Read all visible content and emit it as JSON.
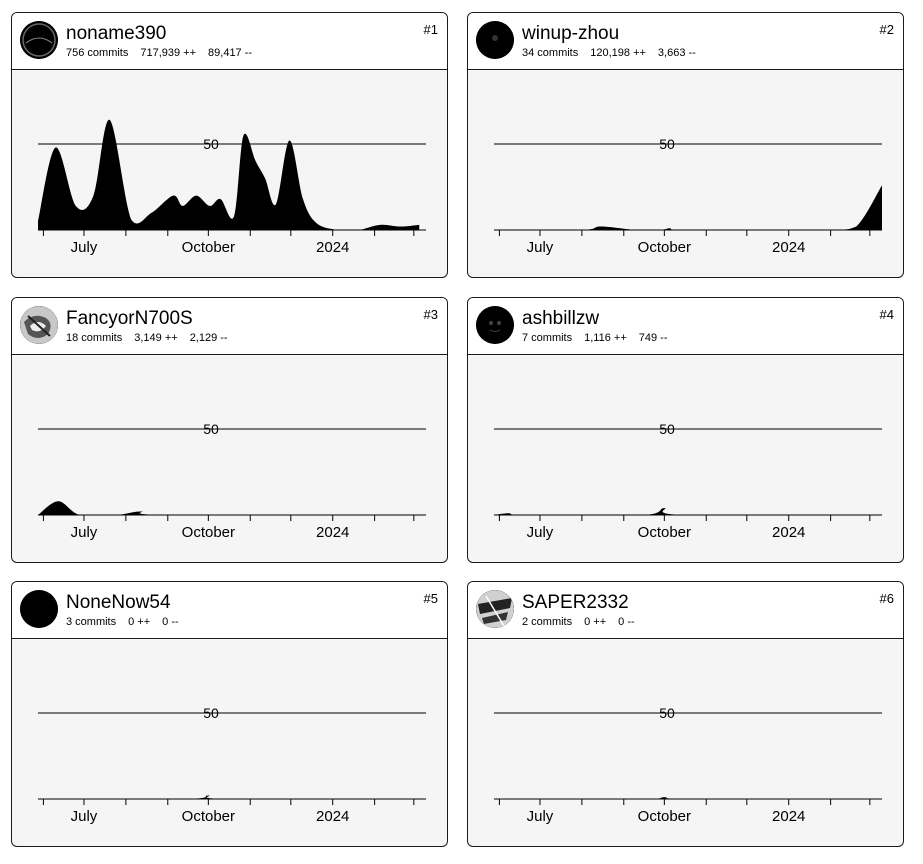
{
  "colors": {
    "card_bg": "#f5f5f5",
    "header_bg": "#ffffff",
    "fill": "#000000"
  },
  "cards": [
    {
      "rank": "#1",
      "username": "noname390",
      "commits": "756 commits",
      "additions": "717,939 ++",
      "deletions": "89,417 --",
      "avatar_icon": "avatar-icon"
    },
    {
      "rank": "#2",
      "username": "winup-zhou",
      "commits": "34 commits",
      "additions": "120,198 ++",
      "deletions": "3,663 --",
      "avatar_icon": "avatar-icon"
    },
    {
      "rank": "#3",
      "username": "FancyorN700S",
      "commits": "18 commits",
      "additions": "3,149 ++",
      "deletions": "2,129 --",
      "avatar_icon": "avatar-icon"
    },
    {
      "rank": "#4",
      "username": "ashbillzw",
      "commits": "7 commits",
      "additions": "1,116 ++",
      "deletions": "749 --",
      "avatar_icon": "avatar-icon"
    },
    {
      "rank": "#5",
      "username": "NoneNow54",
      "commits": "3 commits",
      "additions": "0 ++",
      "deletions": "0 --",
      "avatar_icon": "avatar-icon"
    },
    {
      "rank": "#6",
      "username": "SAPER2332",
      "commits": "2 commits",
      "additions": "0 ++",
      "deletions": "0 --",
      "avatar_icon": "avatar-icon"
    }
  ],
  "chart_data": [
    {
      "type": "area",
      "title": "",
      "x_labels": [
        "July",
        "October",
        "2024"
      ],
      "y_labels": [
        "50"
      ],
      "ylim": [
        0,
        50
      ],
      "grid": false,
      "series": [
        {
          "x": [
            "2023-05-28",
            "2023-06-10",
            "2023-06-25",
            "2023-07-08",
            "2023-07-20",
            "2023-08-05",
            "2023-08-20",
            "2023-09-05",
            "2023-09-12",
            "2023-09-22",
            "2023-10-02",
            "2023-10-10",
            "2023-10-20",
            "2023-10-27",
            "2023-11-05",
            "2023-11-12",
            "2023-11-20",
            "2023-11-30",
            "2023-12-10",
            "2023-12-20",
            "2024-01-05",
            "2024-01-20",
            "2024-02-05",
            "2024-02-20",
            "2024-03-05"
          ],
          "y": [
            5,
            48,
            14,
            20,
            64,
            6,
            10,
            20,
            14,
            20,
            14,
            18,
            8,
            55,
            40,
            30,
            15,
            52,
            18,
            4,
            0,
            0,
            3,
            2,
            3
          ]
        }
      ]
    },
    {
      "type": "area",
      "title": "",
      "x_labels": [
        "July",
        "October",
        "2024"
      ],
      "y_labels": [
        "50"
      ],
      "ylim": [
        0,
        50
      ],
      "grid": false,
      "series": [
        {
          "x": [
            "2023-05-28",
            "2023-08-01",
            "2023-08-15",
            "2023-09-10",
            "2023-09-28",
            "2023-10-05",
            "2023-10-12",
            "2023-12-01",
            "2024-02-01",
            "2024-02-20",
            "2024-03-10"
          ],
          "y": [
            0,
            0,
            2,
            0,
            0,
            1,
            0,
            0,
            0,
            2,
            26
          ]
        }
      ]
    },
    {
      "type": "area",
      "title": "",
      "x_labels": [
        "July",
        "October",
        "2024"
      ],
      "y_labels": [
        "50"
      ],
      "ylim": [
        0,
        50
      ],
      "grid": false,
      "series": [
        {
          "x": [
            "2023-05-28",
            "2023-06-12",
            "2023-06-28",
            "2023-07-25",
            "2023-08-12",
            "2023-09-01",
            "2024-03-10"
          ],
          "y": [
            0,
            8,
            0,
            0,
            2,
            0,
            0
          ]
        }
      ]
    },
    {
      "type": "area",
      "title": "",
      "x_labels": [
        "July",
        "October",
        "2024"
      ],
      "y_labels": [
        "50"
      ],
      "ylim": [
        0,
        50
      ],
      "grid": false,
      "series": [
        {
          "x": [
            "2023-05-28",
            "2023-06-08",
            "2023-06-20",
            "2023-09-15",
            "2023-10-01",
            "2023-10-15",
            "2024-03-10"
          ],
          "y": [
            0,
            1,
            0,
            0,
            4,
            0,
            0
          ]
        }
      ]
    },
    {
      "type": "area",
      "title": "",
      "x_labels": [
        "July",
        "October",
        "2024"
      ],
      "y_labels": [
        "50"
      ],
      "ylim": [
        0,
        50
      ],
      "grid": false,
      "series": [
        {
          "x": [
            "2023-05-28",
            "2023-09-15",
            "2023-10-01",
            "2023-10-15",
            "2024-03-10"
          ],
          "y": [
            0,
            0,
            2,
            0,
            0
          ]
        }
      ]
    },
    {
      "type": "area",
      "title": "",
      "x_labels": [
        "July",
        "October",
        "2024"
      ],
      "y_labels": [
        "50"
      ],
      "ylim": [
        0,
        50
      ],
      "grid": false,
      "series": [
        {
          "x": [
            "2023-05-28",
            "2023-09-15",
            "2023-10-01",
            "2023-10-20",
            "2024-03-10"
          ],
          "y": [
            0,
            0,
            1,
            0,
            0
          ]
        }
      ]
    }
  ]
}
